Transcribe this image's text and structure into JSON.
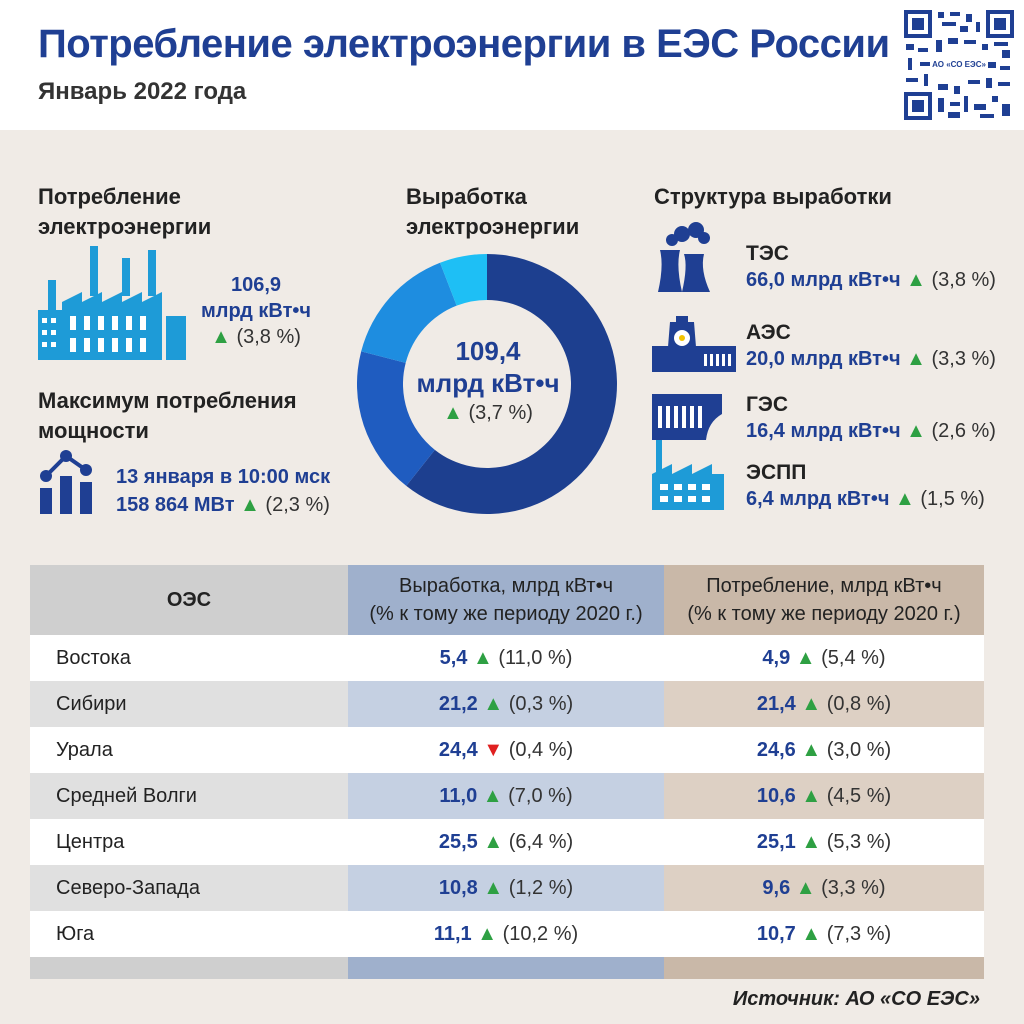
{
  "header": {
    "title": "Потребление электроэнергии в ЕЭС России",
    "subtitle": "Январь 2022 года",
    "qr_label": "АО «СО ЕЭС»"
  },
  "consumption": {
    "heading_line1": "Потребление",
    "heading_line2": "электроэнергии",
    "value": "106,9",
    "unit": "млрд кВт•ч",
    "change": "(3,8 %)",
    "trend": "up"
  },
  "peak": {
    "heading_line1": "Максимум потребления",
    "heading_line2": "мощности",
    "date": "13 января в 10:00 мск",
    "value": "158 864 МВт",
    "change": "(2,3 %)",
    "trend": "up"
  },
  "generation": {
    "heading_line1": "Выработка",
    "heading_line2": "электроэнергии",
    "value": "109,4",
    "unit": "млрд кВт•ч",
    "change": "(3,7 %)",
    "trend": "up"
  },
  "structure": {
    "heading": "Структура выработки",
    "items": [
      {
        "name": "ТЭС",
        "value": "66,0 млрд кВт•ч",
        "change": "(3,8 %)",
        "trend": "up"
      },
      {
        "name": "АЭС",
        "value": "20,0 млрд кВт•ч",
        "change": "(3,3 %)",
        "trend": "up"
      },
      {
        "name": "ГЭС",
        "value": "16,4 млрд кВт•ч",
        "change": "(2,6 %)",
        "trend": "up"
      },
      {
        "name": "ЭСПП",
        "value": "6,4 млрд кВт•ч",
        "change": "(1,5 %)",
        "trend": "up"
      }
    ]
  },
  "chart_data": {
    "type": "pie",
    "categories": [
      "ТЭС",
      "АЭС",
      "ГЭС",
      "ЭСПП"
    ],
    "values": [
      66.0,
      20.0,
      16.4,
      6.4
    ],
    "colors": [
      "#1d3f8f",
      "#1f5cc0",
      "#1e8de0",
      "#1ebff5"
    ]
  },
  "table": {
    "headers": {
      "region": "ОЭС",
      "gen_line1": "Выработка, млрд кВт•ч",
      "gen_line2": "(% к тому же периоду 2020 г.)",
      "cons_line1": "Потребление, млрд кВт•ч",
      "cons_line2": "(% к тому же периоду 2020 г.)"
    },
    "rows": [
      {
        "region": "Востока",
        "gen": "5,4",
        "gen_change": "(11,0 %)",
        "gen_trend": "up",
        "cons": "4,9",
        "cons_change": "(5,4 %)",
        "cons_trend": "up"
      },
      {
        "region": "Сибири",
        "gen": "21,2",
        "gen_change": "(0,3 %)",
        "gen_trend": "up",
        "cons": "21,4",
        "cons_change": "(0,8 %)",
        "cons_trend": "up"
      },
      {
        "region": "Урала",
        "gen": "24,4",
        "gen_change": "(0,4 %)",
        "gen_trend": "down",
        "cons": "24,6",
        "cons_change": "(3,0 %)",
        "cons_trend": "up"
      },
      {
        "region": "Средней Волги",
        "gen": "11,0",
        "gen_change": "(7,0 %)",
        "gen_trend": "up",
        "cons": "10,6",
        "cons_change": "(4,5 %)",
        "cons_trend": "up"
      },
      {
        "region": "Центра",
        "gen": "25,5",
        "gen_change": "(6,4 %)",
        "gen_trend": "up",
        "cons": "25,1",
        "cons_change": "(5,3 %)",
        "cons_trend": "up"
      },
      {
        "region": "Северо-Запада",
        "gen": "10,8",
        "gen_change": "(1,2 %)",
        "gen_trend": "up",
        "cons": "9,6",
        "cons_change": "(3,3 %)",
        "cons_trend": "up"
      },
      {
        "region": "Юга",
        "gen": "11,1",
        "gen_change": "(10,2 %)",
        "gen_trend": "up",
        "cons": "10,7",
        "cons_change": "(7,3 %)",
        "cons_trend": "up"
      }
    ]
  },
  "source": "Источник: АО «СО ЕЭС»",
  "colors": {
    "accent": "#1f3f93",
    "up": "#2ea043",
    "down": "#e02020",
    "icon": "#1e9bd7"
  }
}
